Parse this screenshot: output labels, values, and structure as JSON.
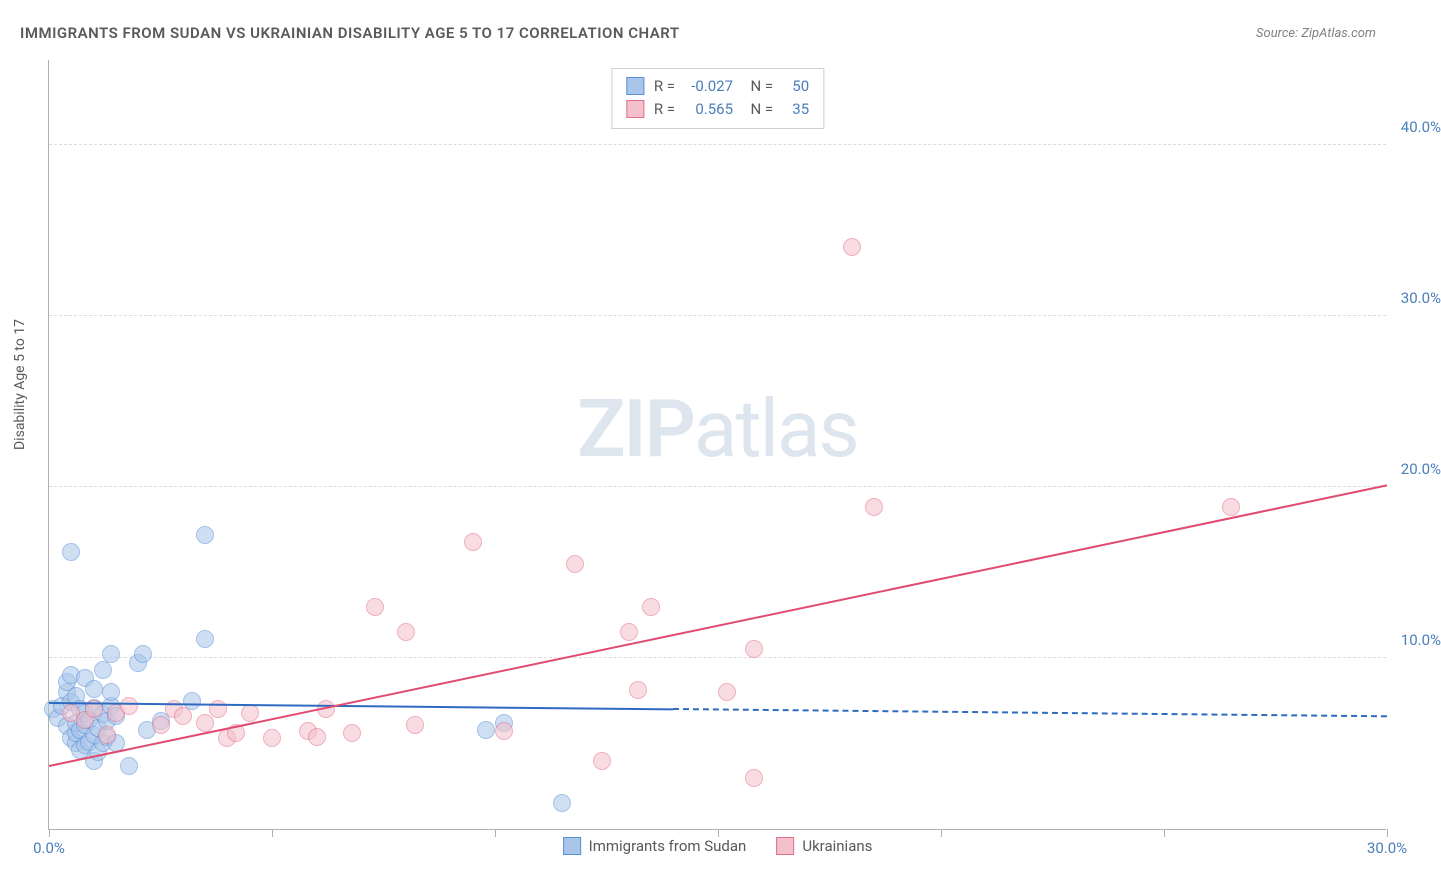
{
  "title": "IMMIGRANTS FROM SUDAN VS UKRAINIAN DISABILITY AGE 5 TO 17 CORRELATION CHART",
  "source": "Source: ZipAtlas.com",
  "ylabel": "Disability Age 5 to 17",
  "watermark": {
    "bold": "ZIP",
    "light": "atlas"
  },
  "chart": {
    "type": "scatter",
    "background_color": "#ffffff",
    "grid_color": "#dcdcdc",
    "axis_color": "#b0b0b0",
    "tick_label_color": "#4a7ebb",
    "xlim": [
      0,
      30
    ],
    "ylim": [
      0,
      45
    ],
    "xticks": [
      0,
      5,
      10,
      15,
      20,
      25,
      30
    ],
    "xtick_labels_shown": {
      "0": "0.0%",
      "30": "30.0%"
    },
    "yticks": [
      10,
      20,
      30,
      40
    ],
    "ytick_labels": [
      "10.0%",
      "20.0%",
      "30.0%",
      "40.0%"
    ],
    "point_radius": 9,
    "point_opacity": 0.55,
    "series": [
      {
        "name": "Immigrants from Sudan",
        "fill": "#a9c6ea",
        "stroke": "#5b8fd6",
        "line_color": "#2e6bc0",
        "R": "-0.027",
        "N": "50",
        "trend": {
          "x1": 0,
          "y1": 7.3,
          "x2_solid": 14,
          "x2_dash": 30,
          "y2": 6.5
        },
        "points": [
          [
            0.1,
            7.0
          ],
          [
            0.2,
            6.5
          ],
          [
            0.3,
            7.2
          ],
          [
            0.4,
            6.0
          ],
          [
            0.4,
            8.0
          ],
          [
            0.4,
            8.6
          ],
          [
            0.5,
            5.3
          ],
          [
            0.5,
            7.4
          ],
          [
            0.5,
            9.0
          ],
          [
            0.5,
            16.2
          ],
          [
            0.6,
            5.0
          ],
          [
            0.6,
            5.6
          ],
          [
            0.6,
            6.2
          ],
          [
            0.6,
            7.8
          ],
          [
            0.7,
            4.6
          ],
          [
            0.7,
            5.8
          ],
          [
            0.7,
            7.0
          ],
          [
            0.8,
            4.9
          ],
          [
            0.8,
            6.1
          ],
          [
            0.8,
            6.8
          ],
          [
            0.8,
            8.8
          ],
          [
            0.9,
            5.1
          ],
          [
            0.9,
            6.4
          ],
          [
            1.0,
            4.0
          ],
          [
            1.0,
            5.5
          ],
          [
            1.0,
            7.1
          ],
          [
            1.0,
            8.2
          ],
          [
            1.1,
            4.5
          ],
          [
            1.1,
            5.9
          ],
          [
            1.2,
            5.0
          ],
          [
            1.2,
            6.7
          ],
          [
            1.2,
            9.3
          ],
          [
            1.3,
            5.4
          ],
          [
            1.3,
            6.3
          ],
          [
            1.4,
            7.2
          ],
          [
            1.4,
            8.0
          ],
          [
            1.4,
            10.2
          ],
          [
            1.5,
            5.0
          ],
          [
            1.5,
            6.6
          ],
          [
            1.8,
            3.7
          ],
          [
            2.0,
            9.7
          ],
          [
            2.1,
            10.2
          ],
          [
            2.2,
            5.8
          ],
          [
            2.5,
            6.3
          ],
          [
            3.2,
            7.5
          ],
          [
            3.5,
            11.1
          ],
          [
            3.5,
            17.2
          ],
          [
            9.8,
            5.8
          ],
          [
            10.2,
            6.2
          ],
          [
            11.5,
            1.5
          ]
        ]
      },
      {
        "name": "Ukrainians",
        "fill": "#f4c0cb",
        "stroke": "#e26f8a",
        "line_color": "#e04b6f",
        "R": "0.565",
        "N": "35",
        "trend": {
          "x1": 0,
          "y1": 3.6,
          "x2_solid": 30,
          "x2_dash": 30,
          "y2": 20.0
        },
        "points": [
          [
            0.5,
            6.8
          ],
          [
            0.8,
            6.4
          ],
          [
            1.0,
            7.0
          ],
          [
            1.3,
            5.5
          ],
          [
            1.5,
            6.8
          ],
          [
            1.8,
            7.2
          ],
          [
            2.5,
            6.1
          ],
          [
            2.8,
            7.0
          ],
          [
            3.0,
            6.6
          ],
          [
            3.5,
            6.2
          ],
          [
            3.8,
            7.0
          ],
          [
            4.0,
            5.3
          ],
          [
            4.2,
            5.6
          ],
          [
            4.5,
            6.8
          ],
          [
            5.0,
            5.3
          ],
          [
            5.8,
            5.7
          ],
          [
            6.0,
            5.4
          ],
          [
            6.2,
            7.0
          ],
          [
            6.8,
            5.6
          ],
          [
            7.3,
            13.0
          ],
          [
            8.0,
            11.5
          ],
          [
            8.2,
            6.1
          ],
          [
            9.5,
            16.8
          ],
          [
            10.2,
            5.7
          ],
          [
            11.8,
            15.5
          ],
          [
            12.4,
            4.0
          ],
          [
            13.0,
            11.5
          ],
          [
            13.2,
            8.1
          ],
          [
            13.5,
            13.0
          ],
          [
            15.2,
            8.0
          ],
          [
            15.8,
            3.0
          ],
          [
            15.8,
            10.5
          ],
          [
            18.5,
            18.8
          ],
          [
            18.0,
            34.0
          ],
          [
            26.5,
            18.8
          ]
        ]
      }
    ],
    "bottom_legend": [
      {
        "swatch_fill": "#a9c6ea",
        "swatch_stroke": "#5b8fd6",
        "label": "Immigrants from Sudan"
      },
      {
        "swatch_fill": "#f4c0cb",
        "swatch_stroke": "#e26f8a",
        "label": "Ukrainians"
      }
    ]
  }
}
